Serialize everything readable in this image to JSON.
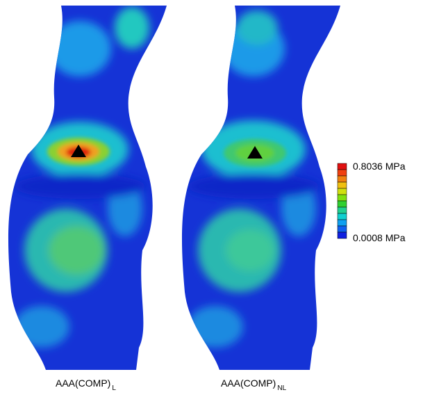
{
  "panels": [
    {
      "label": "AAA(COMP)",
      "subscript": "L"
    },
    {
      "label": "AAA(COMP)",
      "subscript": "NL"
    }
  ],
  "colorbar": {
    "max_label": "0.8036 MPa",
    "min_label": "0.0008 MPa"
  }
}
